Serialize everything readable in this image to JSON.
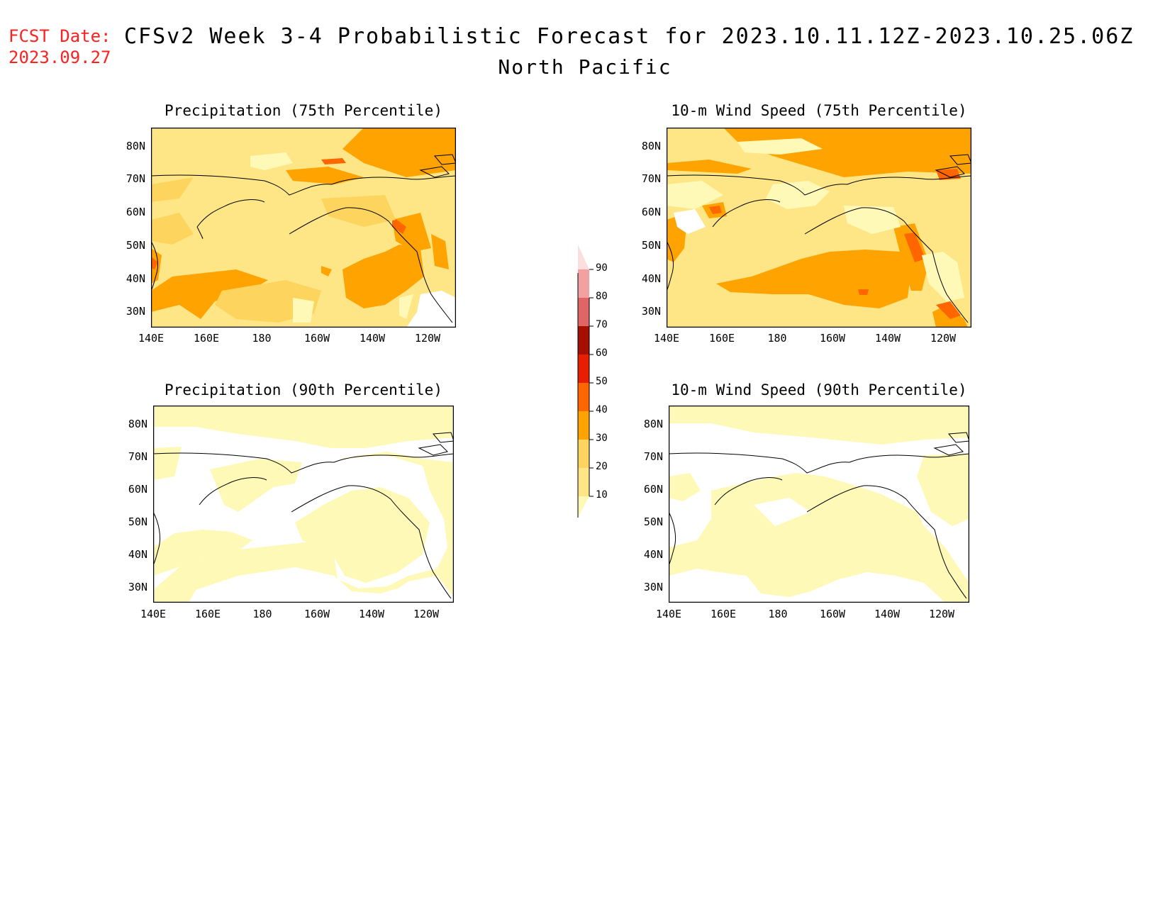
{
  "header": {
    "fcst_label": "FCST Date:",
    "fcst_date": "2023.09.27",
    "title": "CFSv2 Week 3-4 Probabilistic Forecast for 2023.10.11.12Z-2023.10.25.06Z",
    "region": "North Pacific"
  },
  "panels": [
    {
      "title": "Precipitation (75th Percentile)"
    },
    {
      "title": "10-m Wind Speed (75th Percentile)"
    },
    {
      "title": "Precipitation (90th Percentile)"
    },
    {
      "title": "10-m Wind Speed (90th Percentile)"
    }
  ],
  "axes": {
    "lat_labels": [
      "80N",
      "70N",
      "60N",
      "50N",
      "40N",
      "30N"
    ],
    "lon_labels": [
      "140E",
      "160E",
      "180",
      "160W",
      "140W",
      "120W"
    ]
  },
  "colorbar": {
    "levels": [
      "10",
      "20",
      "30",
      "40",
      "50",
      "60",
      "70",
      "80",
      "90"
    ],
    "colors": [
      "#fff9b8",
      "#fee686",
      "#fdd45e",
      "#ffa300",
      "#ff6600",
      "#e81e00",
      "#a50f00",
      "#e06666",
      "#f2a0a0",
      "#fddede"
    ]
  }
}
